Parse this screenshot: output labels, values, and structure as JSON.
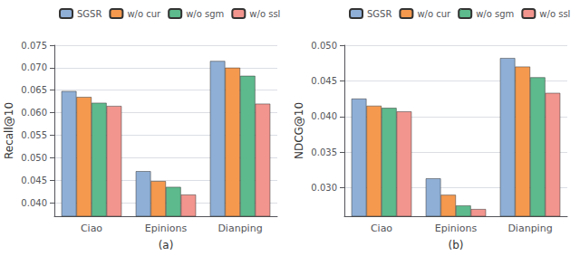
{
  "chart_data": [
    {
      "type": "bar",
      "xlabel": "(a)",
      "ylabel": "Recall@10",
      "categories": [
        "Ciao",
        "Epinions",
        "Dianping"
      ],
      "series": [
        {
          "name": "SGSR",
          "color": "#8fafd6",
          "values": [
            0.0648,
            0.047,
            0.0715
          ]
        },
        {
          "name": "w/o cur",
          "color": "#f5994e",
          "values": [
            0.0635,
            0.0448,
            0.07
          ]
        },
        {
          "name": "w/o sgm",
          "color": "#5dba8c",
          "values": [
            0.0622,
            0.0435,
            0.0682
          ]
        },
        {
          "name": "w/o ssl",
          "color": "#f2958e",
          "values": [
            0.0615,
            0.0418,
            0.062
          ]
        }
      ],
      "ylim": [
        0.037,
        0.075
      ],
      "yticks": [
        {
          "value": 0.04,
          "label": "0.040"
        },
        {
          "value": 0.045,
          "label": "0.045"
        },
        {
          "value": 0.05,
          "label": "0.050"
        },
        {
          "value": 0.055,
          "label": "0.055"
        },
        {
          "value": 0.06,
          "label": "0.060"
        },
        {
          "value": 0.065,
          "label": "0.065"
        },
        {
          "value": 0.07,
          "label": "0.070"
        },
        {
          "value": 0.075,
          "label": "0.075"
        }
      ],
      "grid": true,
      "legend": "upper left"
    },
    {
      "type": "bar",
      "xlabel": "(b)",
      "ylabel": "NDCG@10",
      "categories": [
        "Ciao",
        "Epinions",
        "Dianping"
      ],
      "series": [
        {
          "name": "SGSR",
          "color": "#8fafd6",
          "values": [
            0.0425,
            0.0313,
            0.0482
          ]
        },
        {
          "name": "w/o cur",
          "color": "#f5994e",
          "values": [
            0.0415,
            0.029,
            0.047
          ]
        },
        {
          "name": "w/o sgm",
          "color": "#5dba8c",
          "values": [
            0.0412,
            0.0275,
            0.0455
          ]
        },
        {
          "name": "w/o ssl",
          "color": "#f2958e",
          "values": [
            0.0407,
            0.027,
            0.0433
          ]
        }
      ],
      "ylim": [
        0.026,
        0.05
      ],
      "yticks": [
        {
          "value": 0.03,
          "label": "0.030"
        },
        {
          "value": 0.035,
          "label": "0.035"
        },
        {
          "value": 0.04,
          "label": "0.040"
        },
        {
          "value": 0.045,
          "label": "0.045"
        },
        {
          "value": 0.05,
          "label": "0.050"
        }
      ],
      "grid": true,
      "legend": "upper left"
    }
  ]
}
